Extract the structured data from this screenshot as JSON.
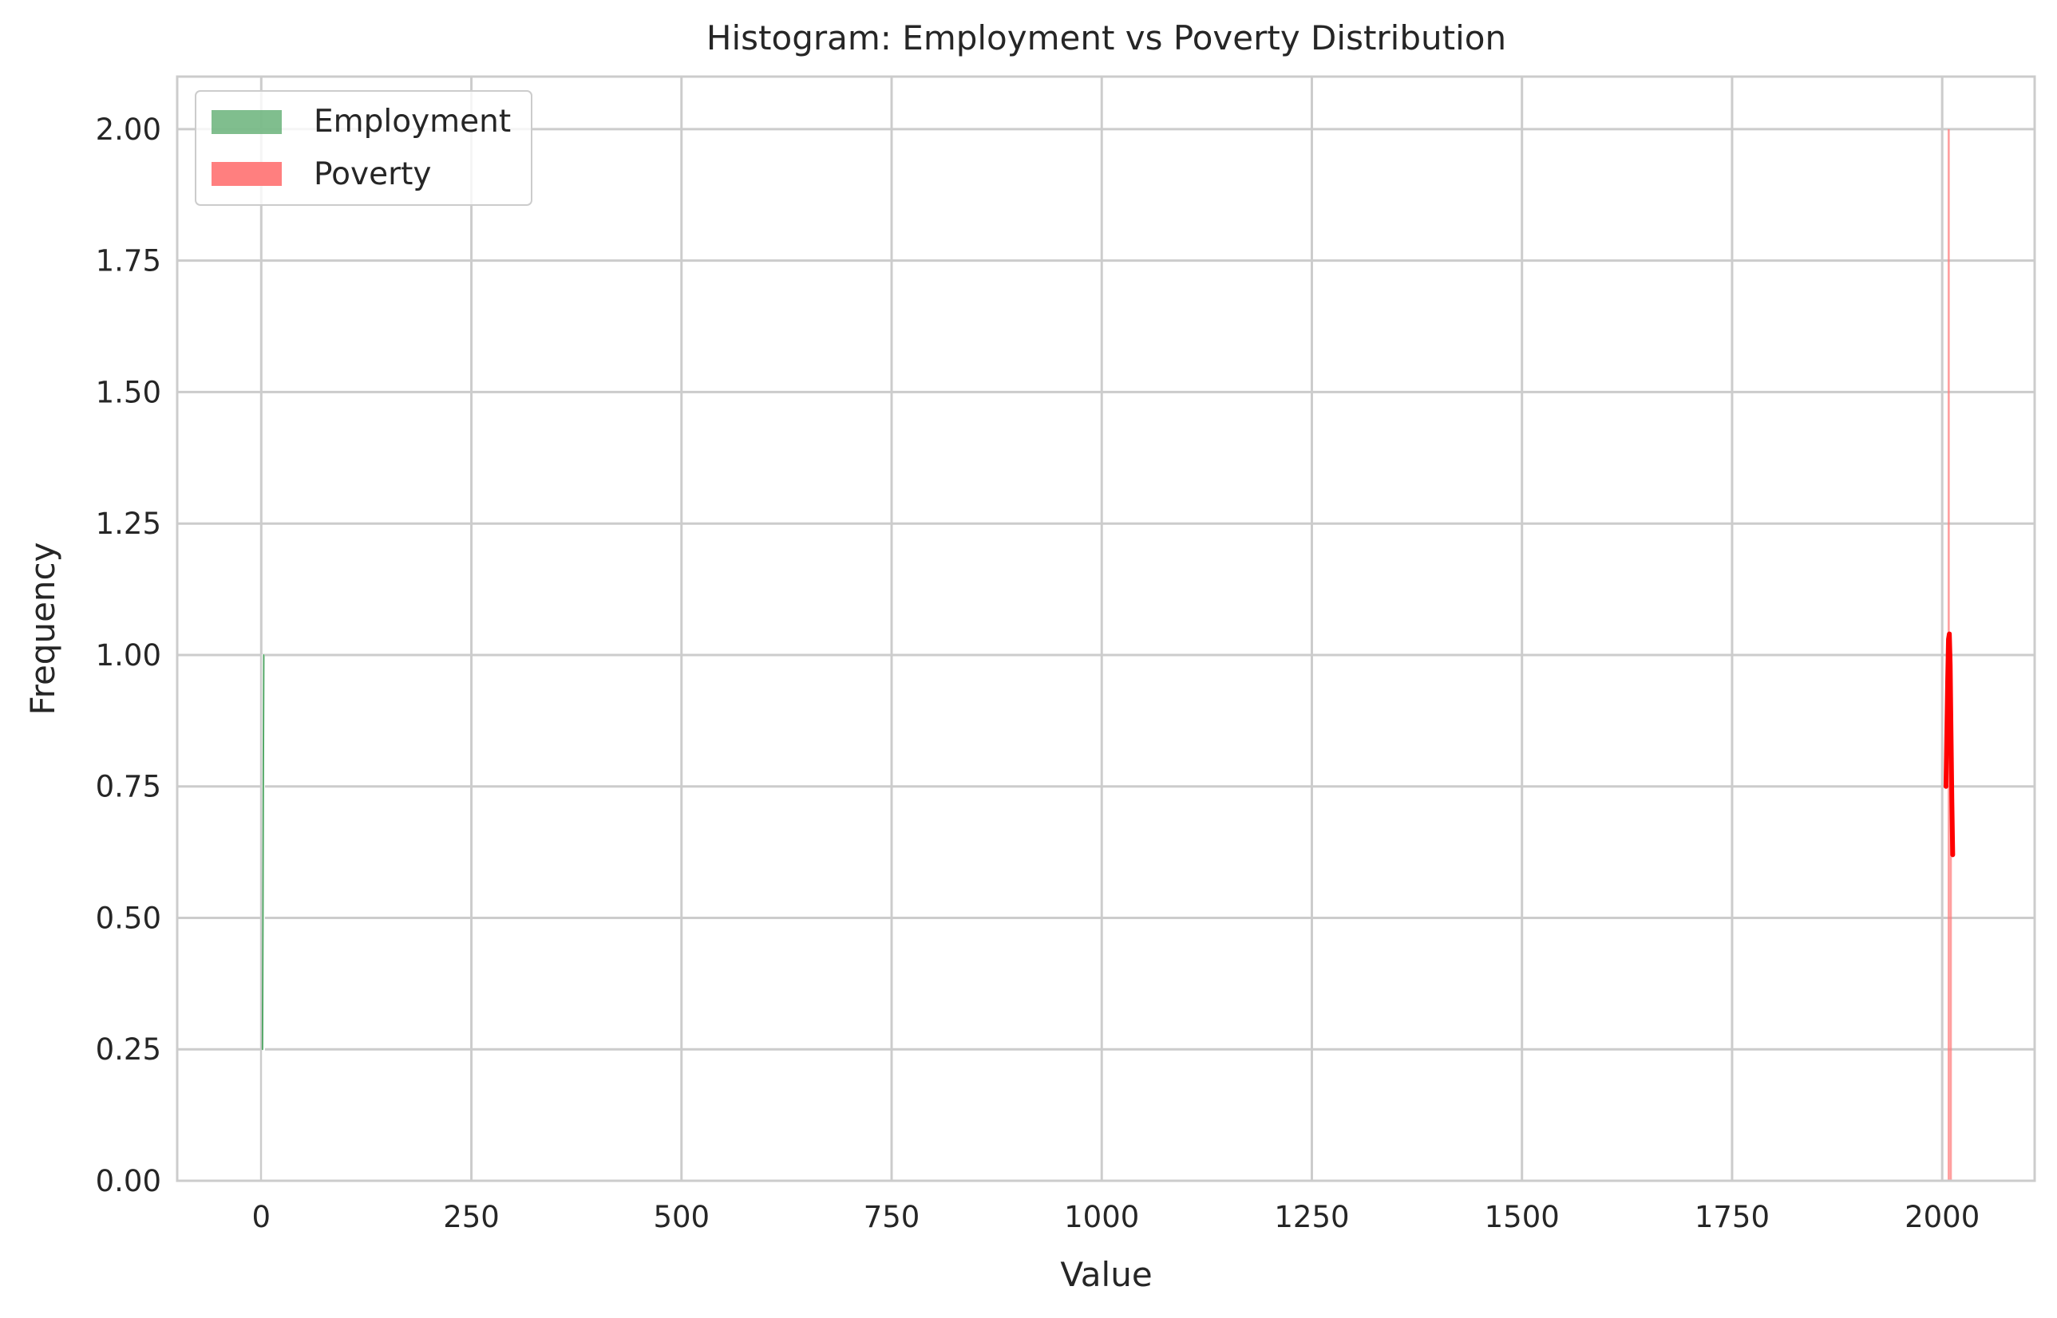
{
  "chart_data": {
    "type": "bar",
    "title": "Histogram: Employment vs Poverty Distribution",
    "xlabel": "Value",
    "ylabel": "Frequency",
    "xlim": [
      -100,
      2110
    ],
    "ylim": [
      0,
      2.1
    ],
    "x_ticks": [
      0,
      250,
      500,
      750,
      1000,
      1250,
      1500,
      1750,
      2000
    ],
    "x_tick_labels": [
      "0",
      "250",
      "500",
      "750",
      "1000",
      "1250",
      "1500",
      "1750",
      "2000"
    ],
    "y_ticks": [
      0,
      0.25,
      0.5,
      0.75,
      1.0,
      1.25,
      1.5,
      1.75,
      2.0
    ],
    "y_tick_labels": [
      "0.00",
      "0.25",
      "0.50",
      "0.75",
      "1.00",
      "1.25",
      "1.50",
      "1.75",
      "2.00"
    ],
    "grid": true,
    "legend_position": "top-left",
    "series": [
      {
        "name": "Employment",
        "color": "#55a868",
        "bins": [
          {
            "x0": 1.6,
            "x1": 2.2,
            "count": 1
          },
          {
            "x0": 2.2,
            "x1": 2.8,
            "count": 1
          }
        ],
        "kde": [
          [
            1.5,
            0.25
          ],
          [
            2.0,
            0.5
          ],
          [
            2.5,
            0.8
          ],
          [
            3.0,
            1.0
          ]
        ]
      },
      {
        "name": "Poverty",
        "color": "#ff7f7f",
        "kde_color": "#ff0000",
        "bins": [
          {
            "x0": 2004.0,
            "x1": 2006.5,
            "count": 0
          },
          {
            "x0": 2006.5,
            "x1": 2009.0,
            "count": 2
          },
          {
            "x0": 2009.0,
            "x1": 2011.5,
            "count": 1
          }
        ],
        "kde": [
          [
            2004.5,
            0.75
          ],
          [
            2005.5,
            0.85
          ],
          [
            2006.5,
            0.95
          ],
          [
            2007.5,
            1.03
          ],
          [
            2008.5,
            1.04
          ],
          [
            2009.5,
            0.98
          ],
          [
            2010.5,
            0.85
          ],
          [
            2011.5,
            0.72
          ],
          [
            2012.5,
            0.62
          ]
        ]
      }
    ]
  }
}
